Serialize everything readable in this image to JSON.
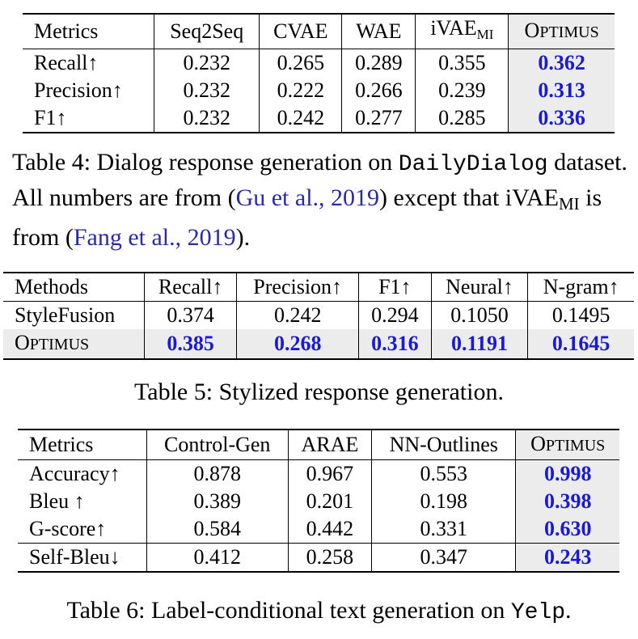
{
  "table4": {
    "headers": [
      "Metrics",
      "Seq2Seq",
      "CVAE",
      "WAE",
      "iVAE",
      "Optimus"
    ],
    "header_sub": "MI",
    "rows": [
      {
        "label": "Recall↑",
        "cells": [
          "0.232",
          "0.265",
          "0.289",
          "0.355",
          "0.362"
        ]
      },
      {
        "label": "Precision↑",
        "cells": [
          "0.232",
          "0.222",
          "0.266",
          "0.239",
          "0.313"
        ]
      },
      {
        "label": "F1↑",
        "cells": [
          "0.232",
          "0.242",
          "0.277",
          "0.285",
          "0.336"
        ]
      }
    ],
    "caption": {
      "prefix": "Table 4: Dialog response generation on ",
      "dataset": "DailyDialog",
      "mid": " dataset. All numbers are from (",
      "cite1": "Gu et al., 2019",
      "mid2": ") except that iVAE",
      "sub": "MI",
      "mid3": " is from (",
      "cite2": "Fang et al., 2019",
      "end": ")."
    }
  },
  "table5": {
    "headers": [
      "Methods",
      "Recall↑",
      "Precision↑",
      "F1↑",
      "Neural↑",
      "N-gram↑"
    ],
    "rows": [
      {
        "label": "StyleFusion",
        "cells": [
          "0.374",
          "0.242",
          "0.294",
          "0.1050",
          "0.1495"
        ]
      },
      {
        "label": "Optimus",
        "cells": [
          "0.385",
          "0.268",
          "0.316",
          "0.1191",
          "0.1645"
        ]
      }
    ],
    "caption": "Table 5: Stylized response generation."
  },
  "table6": {
    "headers": [
      "Metrics",
      "Control-Gen",
      "ARAE",
      "NN-Outlines",
      "Optimus"
    ],
    "rows": [
      {
        "label": "Accuracy↑",
        "cells": [
          "0.878",
          "0.967",
          "0.553",
          "0.998"
        ]
      },
      {
        "label": "Bleu ↑",
        "cells": [
          "0.389",
          "0.201",
          "0.198",
          "0.398"
        ]
      },
      {
        "label": "G-score↑",
        "cells": [
          "0.584",
          "0.442",
          "0.331",
          "0.630"
        ]
      },
      {
        "label": "Self-Bleu↓",
        "cells": [
          "0.412",
          "0.258",
          "0.347",
          "0.243"
        ]
      }
    ],
    "caption": {
      "prefix": "Table 6: Label-conditional text generation on ",
      "dataset": "Yelp",
      "end": "."
    }
  },
  "colors": {
    "best": "#1a1ad6",
    "cite": "#2a2aa8",
    "highlight": "#ececec"
  }
}
